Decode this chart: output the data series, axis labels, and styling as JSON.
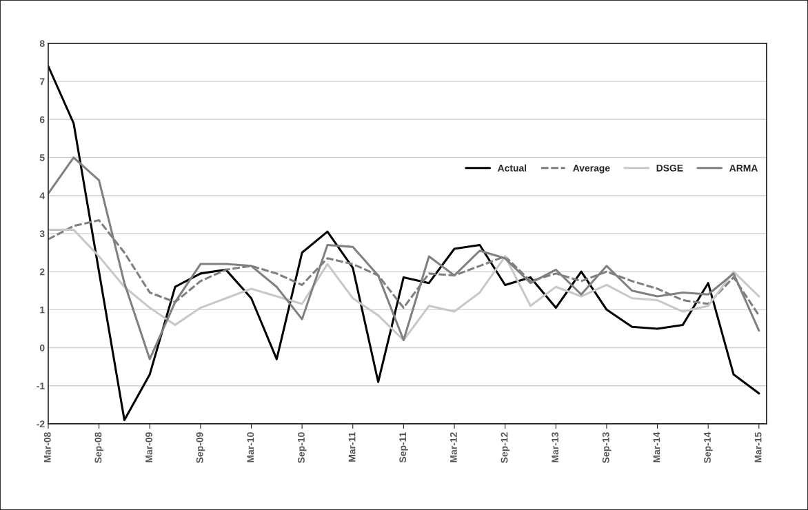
{
  "chart_data": {
    "type": "line",
    "categories": [
      "Mar-08",
      null,
      "Sep-08",
      null,
      "Mar-09",
      null,
      "Sep-09",
      null,
      "Mar-10",
      null,
      "Sep-10",
      null,
      "Mar-11",
      null,
      "Sep-11",
      null,
      "Mar-12",
      null,
      "Sep-12",
      null,
      "Mar-13",
      null,
      "Sep-13",
      null,
      "Mar-14",
      null,
      "Sep-14",
      null,
      "Mar-15"
    ],
    "series": [
      {
        "name": "Actual",
        "color": "#000000",
        "line_style": "solid",
        "values": [
          7.4,
          5.9,
          2.0,
          -1.9,
          -0.7,
          1.6,
          1.95,
          2.05,
          1.3,
          -0.3,
          2.5,
          3.05,
          2.1,
          -0.9,
          1.85,
          1.7,
          2.6,
          2.7,
          1.65,
          1.85,
          1.05,
          2.0,
          1.0,
          0.55,
          0.5,
          0.6,
          1.7,
          -0.7,
          -1.2
        ]
      },
      {
        "name": "Average",
        "color": "#7f7f7f",
        "line_style": "dashed",
        "values": [
          2.85,
          3.2,
          3.35,
          2.5,
          1.45,
          1.2,
          1.75,
          2.05,
          2.15,
          1.95,
          1.65,
          2.35,
          2.2,
          1.9,
          1.05,
          1.95,
          1.9,
          2.15,
          2.4,
          1.75,
          1.95,
          1.75,
          2.0,
          1.75,
          1.55,
          1.25,
          1.15,
          1.85,
          0.85
        ]
      },
      {
        "name": "DSGE",
        "color": "#c8c8c8",
        "line_style": "solid",
        "values": [
          3.1,
          3.1,
          2.4,
          1.6,
          1.05,
          0.6,
          1.05,
          1.3,
          1.55,
          1.35,
          1.15,
          2.2,
          1.3,
          0.85,
          0.2,
          1.1,
          0.95,
          1.45,
          2.4,
          1.1,
          1.6,
          1.35,
          1.65,
          1.3,
          1.25,
          0.95,
          1.1,
          2.0,
          1.35
        ]
      },
      {
        "name": "ARMA",
        "color": "#808080",
        "line_style": "solid",
        "values": [
          4.05,
          5.0,
          4.4,
          1.7,
          -0.3,
          1.2,
          2.2,
          2.2,
          2.15,
          1.6,
          0.75,
          2.7,
          2.65,
          1.9,
          0.2,
          2.4,
          1.9,
          2.55,
          2.35,
          1.7,
          2.05,
          1.4,
          2.15,
          1.5,
          1.35,
          1.45,
          1.4,
          1.95,
          0.45
        ]
      }
    ],
    "ylim": [
      -2,
      8
    ],
    "yticks": [
      -2,
      -1,
      0,
      1,
      2,
      3,
      4,
      5,
      6,
      7,
      8
    ],
    "grid": "y",
    "legend": "right",
    "marker": "none"
  }
}
